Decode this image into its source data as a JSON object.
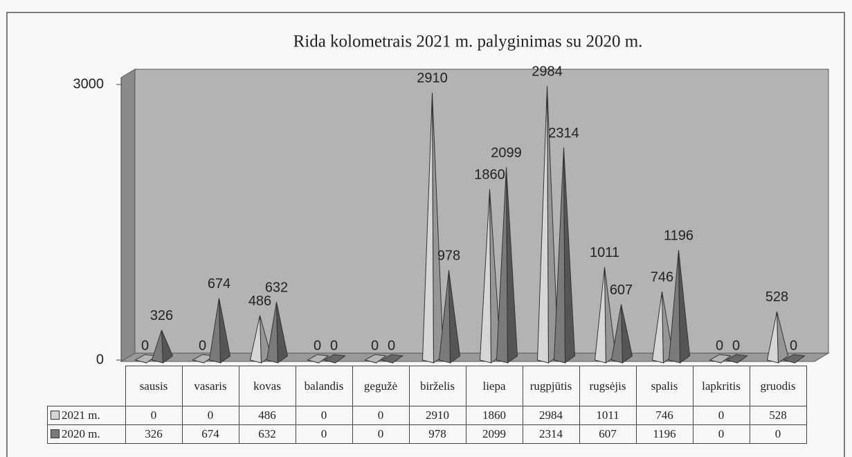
{
  "chart_data": {
    "type": "pyramid3d",
    "title": "Rida kolometrais 2021 m. palyginimas su 2020 m.",
    "categories": [
      "sausis",
      "vasaris",
      "kovas",
      "balandis",
      "gegužė",
      "birželis",
      "liepa",
      "rugpjūtis",
      "rugsėjis",
      "spalis",
      "lapkritis",
      "gruodis"
    ],
    "series": [
      {
        "name": "2021 m.",
        "color": "#d6d6d6",
        "values": [
          0,
          0,
          486,
          0,
          0,
          2910,
          1860,
          2984,
          1011,
          746,
          0,
          528
        ]
      },
      {
        "name": "2020 m.",
        "color": "#7a7a7a",
        "values": [
          326,
          674,
          632,
          0,
          0,
          978,
          2099,
          2314,
          607,
          1196,
          0,
          0
        ]
      }
    ],
    "ylim": [
      0,
      3000
    ],
    "yticks": [
      0,
      3000
    ],
    "data_table": true
  }
}
